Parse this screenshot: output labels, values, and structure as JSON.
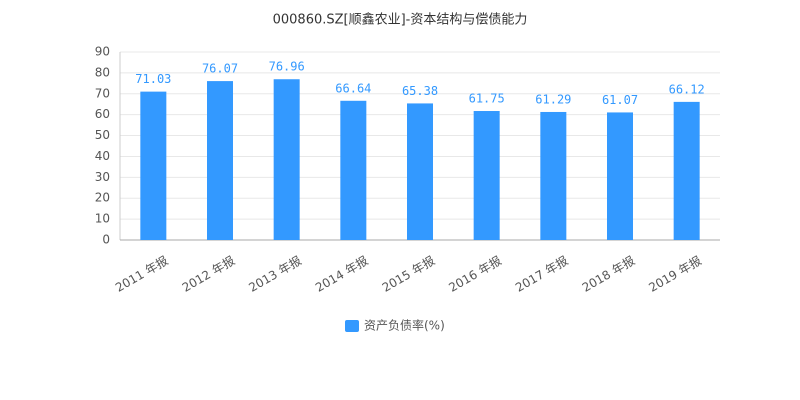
{
  "chart_data": {
    "type": "bar",
    "title": "000860.SZ[顺鑫农业]-资本结构与偿债能力",
    "categories": [
      "2011 年报",
      "2012 年报",
      "2013 年报",
      "2014 年报",
      "2015 年报",
      "2016 年报",
      "2017 年报",
      "2018 年报",
      "2019 年报"
    ],
    "series": [
      {
        "name": "资产负债率(%)",
        "color": "#3399ff",
        "values": [
          71.03,
          76.07,
          76.96,
          66.64,
          65.38,
          61.75,
          61.29,
          61.07,
          66.12
        ]
      }
    ],
    "ylim": [
      0,
      90
    ],
    "yticks": [
      0,
      10,
      20,
      30,
      40,
      50,
      60,
      70,
      80,
      90
    ],
    "grid": true,
    "legend": "bottom"
  }
}
